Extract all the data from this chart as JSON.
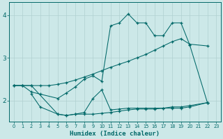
{
  "xlabel": "Humidex (Indice chaleur)",
  "bg_color": "#cce8e8",
  "grid_color": "#b0d0d0",
  "line_color": "#006868",
  "xlim": [
    -0.5,
    23.5
  ],
  "ylim": [
    1.5,
    4.3
  ],
  "xticks": [
    0,
    1,
    2,
    3,
    4,
    5,
    6,
    7,
    8,
    9,
    10,
    11,
    12,
    13,
    14,
    15,
    16,
    17,
    18,
    19,
    20,
    21,
    22,
    23
  ],
  "yticks": [
    2,
    3,
    4
  ],
  "line1_x": [
    0,
    1,
    2,
    3,
    5,
    6,
    7,
    8,
    9,
    10,
    11,
    12,
    13,
    14,
    15,
    16,
    17,
    18,
    19,
    20,
    22
  ],
  "line1_y": [
    2.35,
    2.35,
    2.2,
    2.15,
    2.05,
    2.18,
    2.32,
    2.5,
    2.58,
    2.45,
    3.75,
    3.82,
    4.03,
    3.82,
    3.82,
    3.52,
    3.52,
    3.82,
    3.82,
    3.3,
    1.95
  ],
  "line2_x": [
    0,
    1,
    2,
    3,
    4,
    5,
    6,
    7,
    8,
    9,
    10,
    11,
    12,
    13,
    14,
    15,
    16,
    17,
    18,
    19,
    20,
    22
  ],
  "line2_y": [
    2.35,
    2.35,
    2.35,
    2.35,
    2.35,
    2.38,
    2.42,
    2.48,
    2.55,
    2.62,
    2.7,
    2.78,
    2.85,
    2.92,
    3.0,
    3.08,
    3.18,
    3.28,
    3.38,
    3.45,
    3.32,
    3.28
  ],
  "line3_x": [
    2,
    3,
    5,
    6,
    7,
    8,
    9,
    10,
    11,
    12,
    13,
    14,
    15,
    16,
    17,
    18,
    19,
    20,
    22
  ],
  "line3_y": [
    2.15,
    1.85,
    1.68,
    1.65,
    1.68,
    1.72,
    2.05,
    2.25,
    1.78,
    1.8,
    1.82,
    1.82,
    1.82,
    1.82,
    1.82,
    1.85,
    1.85,
    1.88,
    1.95
  ],
  "line4_x": [
    0,
    1,
    2,
    5,
    6,
    7,
    8,
    9,
    10,
    11,
    12,
    13,
    14,
    15,
    16,
    17,
    18,
    19,
    20,
    22
  ],
  "line4_y": [
    2.35,
    2.35,
    2.35,
    1.68,
    1.65,
    1.68,
    1.68,
    1.68,
    1.7,
    1.72,
    1.75,
    1.78,
    1.8,
    1.8,
    1.8,
    1.82,
    1.82,
    1.82,
    1.85,
    1.95
  ]
}
